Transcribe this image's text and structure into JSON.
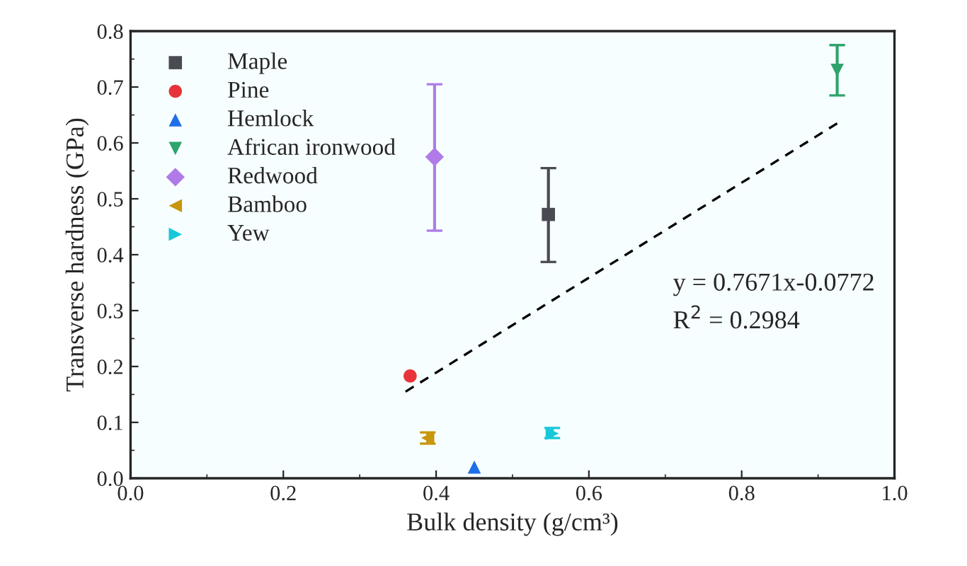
{
  "chart_data": {
    "type": "scatter",
    "xlabel": "Bulk density (g/cm³)",
    "ylabel": "Transverse hardness (GPa)",
    "xlim": [
      0,
      1.0
    ],
    "xticks": [
      {
        "value": 0,
        "label": "0.0"
      },
      0.2,
      0.4,
      0.6,
      0.8,
      {
        "value": 1.0,
        "label": "1.0"
      }
    ],
    "ylim": [
      0,
      0.8
    ],
    "yticks": [
      {
        "value": 0,
        "label": "0.0"
      },
      0.1,
      0.2,
      0.3,
      0.4,
      0.5,
      0.6,
      0.7,
      0.8
    ],
    "legend": "top left",
    "grid": false,
    "series": [
      {
        "name": "Maple",
        "color": "#4a4a52",
        "marker": "square",
        "x": [
          0.547
        ],
        "values": [
          0.472
        ],
        "errors": [
          [
            0.387,
            0.555
          ]
        ]
      },
      {
        "name": "Pine",
        "color": "#e8333a",
        "marker": "circle",
        "x": [
          0.366
        ],
        "values": [
          0.183
        ],
        "errors": [
          null
        ]
      },
      {
        "name": "Hemlock",
        "color": "#1f6fe8",
        "marker": "triangle",
        "x": [
          0.45
        ],
        "values": [
          0.02
        ],
        "errors": [
          null
        ]
      },
      {
        "name": "African ironwood",
        "color": "#2fa36b",
        "marker": "triangle-down",
        "x": [
          0.925
        ],
        "values": [
          0.73
        ],
        "errors": [
          [
            0.685,
            0.775
          ]
        ]
      },
      {
        "name": "Redwood",
        "color": "#b07be8",
        "marker": "diamond",
        "x": [
          0.398
        ],
        "values": [
          0.575
        ],
        "errors": [
          [
            0.443,
            0.705
          ]
        ]
      },
      {
        "name": "Bamboo",
        "color": "#c8960c",
        "marker": "triangle-left",
        "x": [
          0.389
        ],
        "values": [
          0.072
        ],
        "errors": [
          [
            0.062,
            0.082
          ]
        ]
      },
      {
        "name": "Yew",
        "color": "#18c8d8",
        "marker": "triangle-right",
        "x": [
          0.552
        ],
        "values": [
          0.08
        ],
        "errors": [
          [
            0.072,
            0.09
          ]
        ]
      },
      {
        "type": "line",
        "color": "#000000",
        "line_style": "dashed",
        "x": [
          0.36,
          0.925
        ],
        "values": [
          0.155,
          0.635
        ]
      }
    ],
    "annotations": [
      "y = 0.7671x-0.0772",
      "R$^{2}$ = 0.2984"
    ]
  }
}
